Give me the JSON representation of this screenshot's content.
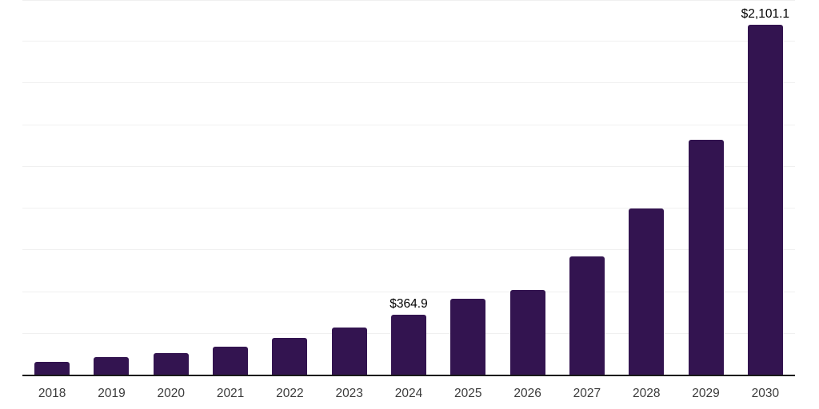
{
  "chart_data": {
    "type": "bar",
    "title": "",
    "xlabel": "",
    "ylabel": "",
    "categories": [
      "2018",
      "2019",
      "2020",
      "2021",
      "2022",
      "2023",
      "2024",
      "2025",
      "2026",
      "2027",
      "2028",
      "2029",
      "2030"
    ],
    "values": [
      80.4,
      109.1,
      134.9,
      174.6,
      223.8,
      288.0,
      364.9,
      461.6,
      514.2,
      715.1,
      1002.0,
      1410.0,
      2101.1
    ],
    "annotations": [
      {
        "category": "2024",
        "index": 6,
        "text": "$364.9"
      },
      {
        "category": "2030",
        "index": 12,
        "text": "$2,101.1"
      }
    ],
    "ylim": [
      0,
      2250
    ],
    "gridline_step": 250,
    "grid": true,
    "legend_position": "none",
    "colors": {
      "bar": "#331450",
      "axis": "#1a1a1a",
      "gridline": "#f0f0f0",
      "tick_label": "#3c3c3c",
      "value_label": "#000000",
      "background": "#ffffff"
    }
  }
}
